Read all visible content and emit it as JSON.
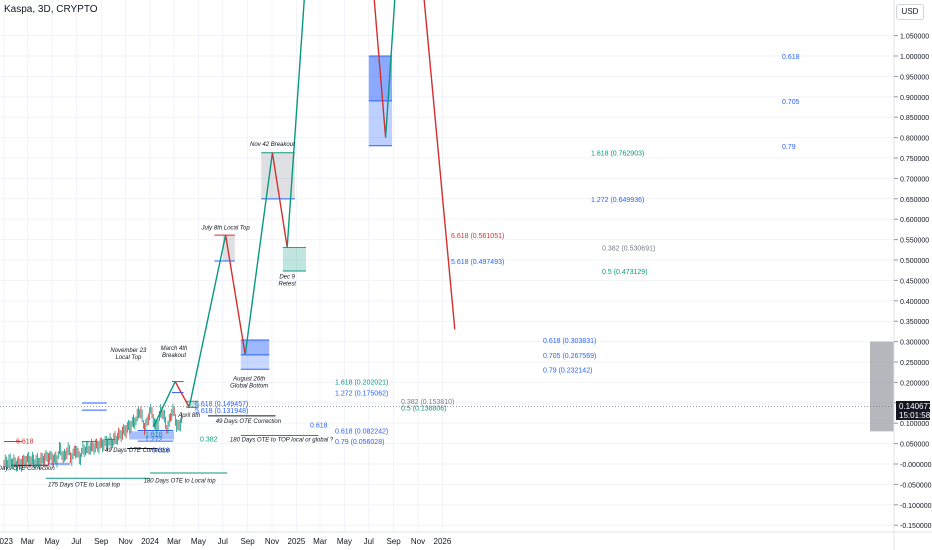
{
  "header": {
    "symbol": "Kaspa, 3D, CRYPTO",
    "currency": "USD"
  },
  "price_tag": {
    "price": "0.140677",
    "countdown": "15:01:58"
  },
  "colors": {
    "green": "#089981",
    "red": "#d32f2f",
    "blue": "#2962ff",
    "grid": "#f0f3fa",
    "text": "#131722"
  },
  "chart_data": {
    "type": "line",
    "title": "Kaspa, 3D, CRYPTO",
    "ylabel": "USD",
    "ylim": [
      -0.16,
      1.12
    ],
    "y_ticks": [
      "1.050000",
      "1.000000",
      "0.950000",
      "0.900000",
      "0.850000",
      "0.800000",
      "0.750000",
      "0.700000",
      "0.650000",
      "0.600000",
      "0.550000",
      "0.500000",
      "0.450000",
      "0.400000",
      "0.350000",
      "0.300000",
      "0.250000",
      "0.200000",
      "0.150000",
      "0.100000",
      "0.050000",
      "-0.000000",
      "-0.050000",
      "-0.100000",
      "-0.150000"
    ],
    "x_ticks": [
      "2023",
      "Mar",
      "May",
      "Jul",
      "Sep",
      "Nov",
      "2024",
      "Mar",
      "May",
      "Jul",
      "Sep",
      "Nov",
      "2025",
      "Mar",
      "May",
      "Jul",
      "Sep",
      "Nov",
      "2026"
    ],
    "last_price": 0.140677,
    "projection": [
      {
        "date": "2024-01-10",
        "value": 0.092
      },
      {
        "date": "2024-03-04",
        "value": 0.202
      },
      {
        "date": "2024-04-08",
        "value": 0.139
      },
      {
        "date": "2024-07-08",
        "value": 0.561
      },
      {
        "date": "2024-08-26",
        "value": 0.268
      },
      {
        "date": "2024-11-02",
        "value": 0.763
      },
      {
        "date": "2024-12-09",
        "value": 0.531
      },
      {
        "date": "2025-02-01",
        "value": 1.3
      },
      {
        "date": "2025-07-01",
        "value": 1.3
      },
      {
        "date": "2025-08-12",
        "value": 0.8
      },
      {
        "date": "2025-09-15",
        "value": 1.3
      },
      {
        "date": "2025-11-01",
        "value": 1.3
      },
      {
        "date": "2026-02-01",
        "value": 0.33
      }
    ],
    "levels": [
      {
        "label": "6.618 (0.149457)",
        "value": 0.149457,
        "color": "blue"
      },
      {
        "label": "5.618 (0.131948)",
        "value": 0.131948,
        "color": "blue"
      },
      {
        "label": "1.618 (0.202021)",
        "value": 0.202021,
        "color": "green"
      },
      {
        "label": "1.272 (0.175062)",
        "value": 0.175062,
        "color": "blue"
      },
      {
        "label": "0.382 (0.153810)",
        "value": 0.15381,
        "color": "gray"
      },
      {
        "label": "0.5 (0.138806)",
        "value": 0.138806,
        "color": "green"
      },
      {
        "label": "0.618 (0.082242)",
        "value": 0.082242,
        "color": "blue"
      },
      {
        "label": "0.79 (0.056028)",
        "value": 0.056028,
        "color": "blue"
      },
      {
        "label": "6.618 (0.561051)",
        "value": 0.561051,
        "color": "red"
      },
      {
        "label": "5.618 (0.497493)",
        "value": 0.497493,
        "color": "blue"
      },
      {
        "label": "0.618 (0.303831)",
        "value": 0.303831,
        "color": "blue"
      },
      {
        "label": "0.705 (0.267569)",
        "value": 0.267569,
        "color": "blue"
      },
      {
        "label": "0.79 (0.232142)",
        "value": 0.232142,
        "color": "blue"
      },
      {
        "label": "1.618 (0.762903)",
        "value": 0.762903,
        "color": "green"
      },
      {
        "label": "1.272 (0.649936)",
        "value": 0.649936,
        "color": "blue"
      },
      {
        "label": "0.382 (0.530691)",
        "value": 0.530691,
        "color": "gray"
      },
      {
        "label": "0.5 (0.473129)",
        "value": 0.473129,
        "color": "green"
      },
      {
        "label": "0.618",
        "value": 1.0,
        "color": "blue"
      },
      {
        "label": "0.705",
        "value": 0.89,
        "color": "blue"
      },
      {
        "label": "0.79",
        "value": 0.78,
        "color": "blue"
      }
    ],
    "annotations": [
      "November 23\nLocal Top",
      "March 4th\nBreakout",
      "April 8th",
      "July 8th Local Top",
      "August 26th\nGlobal Bottom",
      "Nov 42 Breakout",
      "Dec 9\nRetest",
      "49 Days OTE Correction",
      "49 Days OTE Correction",
      "49 Days OTE Correction",
      "175 Days OTE to Local top",
      "180 Days OTE to Local top",
      "180 Days OTE to TOP local or global ?"
    ],
    "small_labels": [
      "6.618",
      "1.618",
      "1.272",
      "0.382",
      "0.618",
      "0.618"
    ]
  }
}
